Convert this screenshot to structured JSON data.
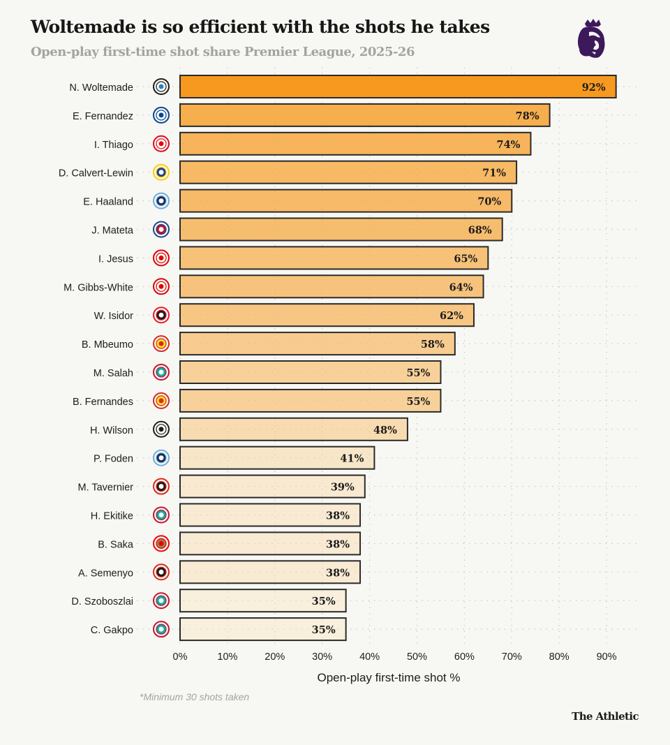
{
  "header": {
    "title": "Woltemade is so efficient with the shots he takes",
    "subtitle": "Open-play first-time shot share Premier League, 2025-26",
    "logo_icon": "premier-league-lion-icon"
  },
  "chart_data": {
    "type": "bar",
    "orientation": "horizontal",
    "title": "Woltemade is so efficient with the shots he takes",
    "subtitle": "Open-play first-time shot share Premier League, 2025-26",
    "xlabel": "Open-play first-time shot %",
    "ylabel": "",
    "xlim": [
      0,
      95
    ],
    "xticks": [
      0,
      10,
      20,
      30,
      40,
      50,
      60,
      70,
      80,
      90
    ],
    "xtick_labels": [
      "0%",
      "10%",
      "20%",
      "30%",
      "40%",
      "50%",
      "60%",
      "70%",
      "80%",
      "90%"
    ],
    "grid": true,
    "legend": "none",
    "categories": [
      "N. Woltemade",
      "E. Fernandez",
      "I. Thiago",
      "D. Calvert-Lewin",
      "E. Haaland",
      "J. Mateta",
      "I. Jesus",
      "M. Gibbs-White",
      "W. Isidor",
      "B. Mbeumo",
      "M. Salah",
      "B. Fernandes",
      "H. Wilson",
      "P. Foden",
      "M. Tavernier",
      "H. Ekitike",
      "B. Saka",
      "A. Semenyo",
      "D. Szoboszlai",
      "C. Gakpo"
    ],
    "clubs": [
      "Newcastle",
      "Chelsea",
      "Brentford",
      "Leeds",
      "Man City",
      "Crystal Palace",
      "Nott'm Forest",
      "Nott'm Forest",
      "Sunderland",
      "Man Utd",
      "Liverpool",
      "Man Utd",
      "Fulham",
      "Man City",
      "Bournemouth",
      "Liverpool",
      "Arsenal",
      "Bournemouth",
      "Liverpool",
      "Liverpool"
    ],
    "values": [
      92,
      78,
      74,
      71,
      70,
      68,
      65,
      64,
      62,
      58,
      55,
      55,
      48,
      41,
      39,
      38,
      38,
      38,
      35,
      35
    ],
    "value_labels": [
      "92%",
      "78%",
      "74%",
      "71%",
      "70%",
      "68%",
      "65%",
      "64%",
      "62%",
      "58%",
      "55%",
      "55%",
      "48%",
      "41%",
      "39%",
      "38%",
      "38%",
      "38%",
      "35%",
      "35%"
    ],
    "color_scale": {
      "low": "#f8efdd",
      "high": "#f7991e"
    }
  },
  "club_badges": {
    "Newcastle": {
      "icon": "newcastle-badge-icon",
      "colors": [
        "#1c1c1c",
        "#ffffff",
        "#2a7fc1"
      ]
    },
    "Chelsea": {
      "icon": "chelsea-badge-icon",
      "colors": [
        "#034694",
        "#ffffff"
      ]
    },
    "Brentford": {
      "icon": "brentford-badge-icon",
      "colors": [
        "#e30613",
        "#ffffff"
      ]
    },
    "Leeds": {
      "icon": "leeds-badge-icon",
      "colors": [
        "#ffcd00",
        "#1d428a",
        "#ffffff"
      ]
    },
    "Man City": {
      "icon": "man-city-badge-icon",
      "colors": [
        "#6cabdd",
        "#1c2c5b",
        "#ffffff"
      ]
    },
    "Crystal Palace": {
      "icon": "crystal-palace-badge-icon",
      "colors": [
        "#1b458f",
        "#c4122e",
        "#ffffff"
      ]
    },
    "Nott'm Forest": {
      "icon": "nottingham-forest-badge-icon",
      "colors": [
        "#dd0000",
        "#ffffff"
      ]
    },
    "Sunderland": {
      "icon": "sunderland-badge-icon",
      "colors": [
        "#eb172b",
        "#1c1c1c",
        "#ffffff"
      ]
    },
    "Man Utd": {
      "icon": "man-utd-badge-icon",
      "colors": [
        "#da291c",
        "#fbe122"
      ]
    },
    "Liverpool": {
      "icon": "liverpool-badge-icon",
      "colors": [
        "#c8102e",
        "#00b2a9",
        "#ffffff"
      ]
    },
    "Fulham": {
      "icon": "fulham-badge-icon",
      "colors": [
        "#1c1c1c",
        "#ffffff"
      ]
    },
    "Bournemouth": {
      "icon": "bournemouth-badge-icon",
      "colors": [
        "#da291c",
        "#1c1c1c",
        "#ffffff"
      ]
    },
    "Arsenal": {
      "icon": "arsenal-badge-icon",
      "colors": [
        "#ef0107",
        "#9c824a"
      ]
    }
  },
  "footer": {
    "footnote": "*Minimum 30 shots taken",
    "brand": "The Athletic"
  }
}
